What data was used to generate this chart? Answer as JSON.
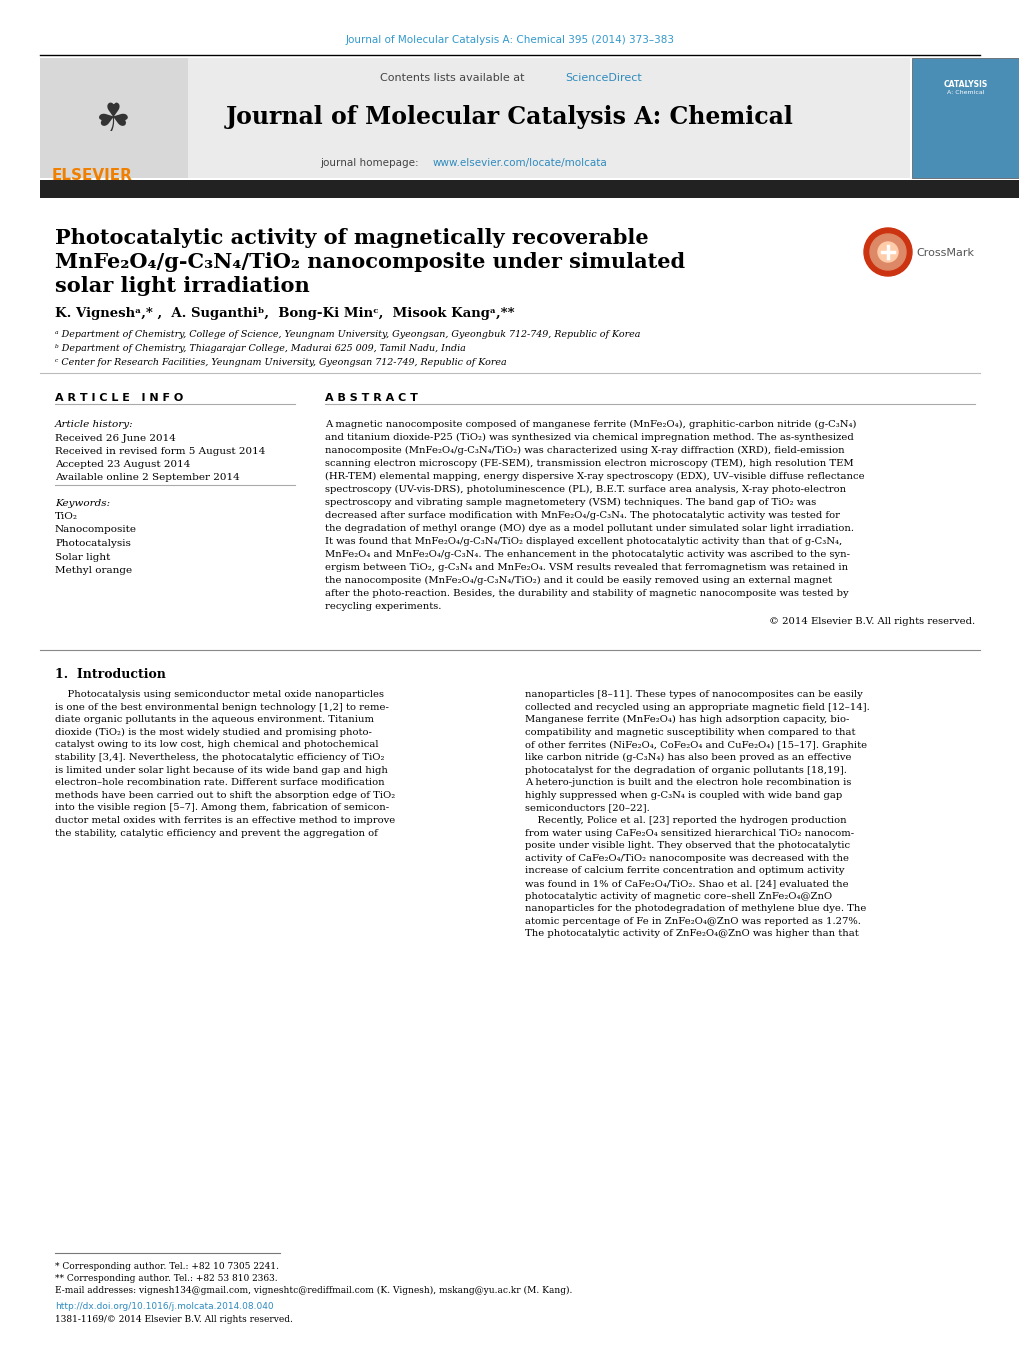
{
  "journal_ref": "Journal of Molecular Catalysis A: Chemical 395 (2014) 373–383",
  "journal_title": "Journal of Molecular Catalysis A: Chemical",
  "sciencedirect_label": "Contents lists available at ",
  "sciencedirect_link": "ScienceDirect",
  "homepage_label": "journal homepage: ",
  "homepage_link": "www.elsevier.com/locate/molcata",
  "paper_title_line1": "Photocatalytic activity of magnetically recoverable",
  "paper_title_line2": "MnFe₂O₄/g-C₃N₄/TiO₂ nanocomposite under simulated",
  "paper_title_line3": "solar light irradiation",
  "authors": "K. Vigneshᵃ,* ,  A. Suganthiᵇ,  Bong-Ki Minᶜ,  Misook Kangᵃ,**",
  "affil_a": "ᵃ Department of Chemistry, College of Science, Yeungnam University, Gyeongsan, Gyeongbuk 712-749, Republic of Korea",
  "affil_b": "ᵇ Department of Chemistry, Thiagarajar College, Madurai 625 009, Tamil Nadu, India",
  "affil_c": "ᶜ Center for Research Facilities, Yeungnam University, Gyeongsan 712-749, Republic of Korea",
  "article_info_header": "A R T I C L E   I N F O",
  "abstract_header": "A B S T R A C T",
  "article_history_label": "Article history:",
  "received": "Received 26 June 2014",
  "received_revised": "Received in revised form 5 August 2014",
  "accepted": "Accepted 23 August 2014",
  "available": "Available online 2 September 2014",
  "keywords_label": "Keywords:",
  "keywords": [
    "TiO₂",
    "Nanocomposite",
    "Photocatalysis",
    "Solar light",
    "Methyl orange"
  ],
  "abstract_lines": [
    "A magnetic nanocomposite composed of manganese ferrite (MnFe₂O₄), graphitic-carbon nitride (g-C₃N₄)",
    "and titanium dioxide-P25 (TiO₂) was synthesized via chemical impregnation method. The as-synthesized",
    "nanocomposite (MnFe₂O₄/g-C₃N₄/TiO₂) was characterized using X-ray diffraction (XRD), field-emission",
    "scanning electron microscopy (FE-SEM), transmission electron microscopy (TEM), high resolution TEM",
    "(HR-TEM) elemental mapping, energy dispersive X-ray spectroscopy (EDX), UV–visible diffuse reflectance",
    "spectroscopy (UV-vis-DRS), photoluminescence (PL), B.E.T. surface area analysis, X-ray photo-electron",
    "spectroscopy and vibrating sample magnetometery (VSM) techniques. The band gap of TiO₂ was",
    "decreased after surface modification with MnFe₂O₄/g-C₃N₄. The photocatalytic activity was tested for",
    "the degradation of methyl orange (MO) dye as a model pollutant under simulated solar light irradiation.",
    "It was found that MnFe₂O₄/g-C₃N₄/TiO₂ displayed excellent photocatalytic activity than that of g-C₃N₄,",
    "MnFe₂O₄ and MnFe₂O₄/g-C₃N₄. The enhancement in the photocatalytic activity was ascribed to the syn-",
    "ergism between TiO₂, g-C₃N₄ and MnFe₂O₄. VSM results revealed that ferromagnetism was retained in",
    "the nanocomposite (MnFe₂O₄/g-C₃N₄/TiO₂) and it could be easily removed using an external magnet",
    "after the photo-reaction. Besides, the durability and stability of magnetic nanocomposite was tested by",
    "recycling experiments."
  ],
  "copyright": "© 2014 Elsevier B.V. All rights reserved.",
  "intro_header": "1.  Introduction",
  "intro_col1_lines": [
    "    Photocatalysis using semiconductor metal oxide nanoparticles",
    "is one of the best environmental benign technology [1,2] to reme-",
    "diate organic pollutants in the aqueous environment. Titanium",
    "dioxide (TiO₂) is the most widely studied and promising photo-",
    "catalyst owing to its low cost, high chemical and photochemical",
    "stability [3,4]. Nevertheless, the photocatalytic efficiency of TiO₂",
    "is limited under solar light because of its wide band gap and high",
    "electron–hole recombination rate. Different surface modification",
    "methods have been carried out to shift the absorption edge of TiO₂",
    "into the visible region [5–7]. Among them, fabrication of semicon-",
    "ductor metal oxides with ferrites is an effective method to improve",
    "the stability, catalytic efficiency and prevent the aggregation of"
  ],
  "intro_col2_lines": [
    "nanoparticles [8–11]. These types of nanocomposites can be easily",
    "collected and recycled using an appropriate magnetic field [12–14].",
    "Manganese ferrite (MnFe₂O₄) has high adsorption capacity, bio-",
    "compatibility and magnetic susceptibility when compared to that",
    "of other ferrites (NiFe₂O₄, CoFe₂O₄ and CuFe₂O₄) [15–17]. Graphite",
    "like carbon nitride (g-C₃N₄) has also been proved as an effective",
    "photocatalyst for the degradation of organic pollutants [18,19].",
    "A hetero-junction is built and the electron hole recombination is",
    "highly suppressed when g-C₃N₄ is coupled with wide band gap",
    "semiconductors [20–22].",
    "    Recently, Police et al. [23] reported the hydrogen production",
    "from water using CaFe₂O₄ sensitized hierarchical TiO₂ nanocom-",
    "posite under visible light. They observed that the photocatalytic",
    "activity of CaFe₂O₄/TiO₂ nanocomposite was decreased with the",
    "increase of calcium ferrite concentration and optimum activity",
    "was found in 1% of CaFe₂O₄/TiO₂. Shao et al. [24] evaluated the",
    "photocatalytic activity of magnetic core–shell ZnFe₂O₄@ZnO",
    "nanoparticles for the photodegradation of methylene blue dye. The",
    "atomic percentage of Fe in ZnFe₂O₄@ZnO was reported as 1.27%.",
    "The photocatalytic activity of ZnFe₂O₄@ZnO was higher than that"
  ],
  "footnote1": "* Corresponding author. Tel.: +82 10 7305 2241.",
  "footnote2": "** Corresponding author. Tel.: +82 53 810 2363.",
  "footnote3": "E-mail addresses: vignesh134@gmail.com, vigneshtc@rediffmail.com (K. Vignesh), mskang@yu.ac.kr (M. Kang).",
  "doi": "http://dx.doi.org/10.1016/j.molcata.2014.08.040",
  "issn": "1381-1169/© 2014 Elsevier B.V. All rights reserved.",
  "bg_color": "#ffffff",
  "elsevier_orange": "#f07f00",
  "link_color": "#2e8bbf",
  "header_link_color": "#3399cc",
  "gray_header_bg": "#ebebeb",
  "dark_bar_color": "#222222"
}
